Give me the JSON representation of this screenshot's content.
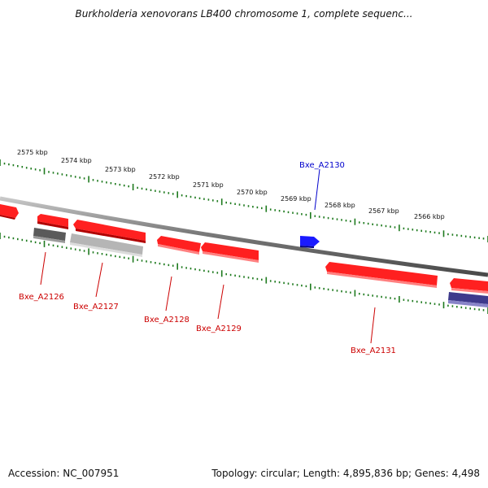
{
  "title": "Burkholderia xenovorans LB400 chromosome 1, complete sequenc...",
  "footer": {
    "accession": "Accession: NC_007951",
    "summary": "Topology: circular; Length: 4,895,836 bp; Genes: 4,498"
  },
  "colors": {
    "backbone": "#7a7a7a",
    "ticks": "#1e7a1e",
    "gene_red": "#e30000",
    "gene_blue": "#1010dd",
    "gene_gray": "#666666",
    "gene_lightgray": "#b8b8b8",
    "gene_purple": "#3e3a8c",
    "label_red": "#cc0000",
    "label_blue": "#0000cc"
  },
  "scale": {
    "kbp_labels": [
      "2575 kbp",
      "2574 kbp",
      "2573 kbp",
      "2572 kbp",
      "2571 kbp",
      "2570 kbp",
      "2569 kbp",
      "2568 kbp",
      "2567 kbp",
      "2566 kbp"
    ]
  },
  "genes": [
    {
      "label": "Bxe_A2126",
      "color": "gene_red"
    },
    {
      "label": "Bxe_A2127",
      "color": "gene_red"
    },
    {
      "label": "Bxe_A2128",
      "color": "gene_red"
    },
    {
      "label": "Bxe_A2129",
      "color": "gene_red"
    },
    {
      "label": "Bxe_A2130",
      "color": "gene_blue"
    },
    {
      "label": "Bxe_A2131",
      "color": "gene_red"
    }
  ]
}
